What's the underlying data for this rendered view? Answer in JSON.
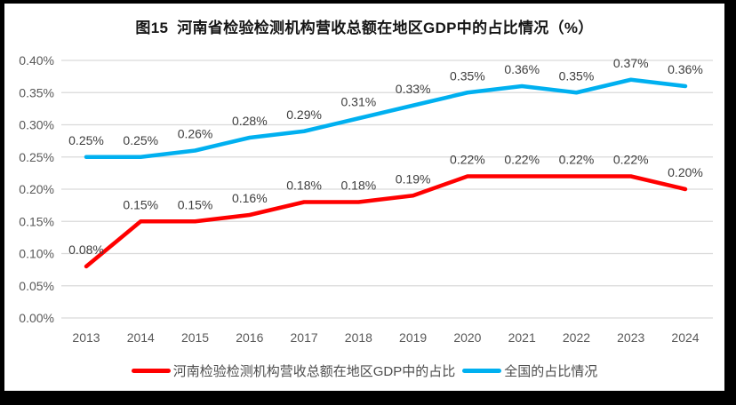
{
  "chart_data": {
    "type": "line",
    "title": "图15  河南省检验检测机构营收总额在地区GDP中的占比情况（%）",
    "categories": [
      "2013",
      "2014",
      "2015",
      "2016",
      "2017",
      "2018",
      "2019",
      "2020",
      "2021",
      "2022",
      "2023",
      "2024"
    ],
    "series": [
      {
        "name": "河南检验检测机构营收总额在地区GDP中的占比",
        "color": "#FF0000",
        "values": [
          0.08,
          0.15,
          0.15,
          0.16,
          0.18,
          0.18,
          0.19,
          0.22,
          0.22,
          0.22,
          0.22,
          0.2
        ],
        "labels": [
          "0.08%",
          "0.15%",
          "0.15%",
          "0.16%",
          "0.18%",
          "0.18%",
          "0.19%",
          "0.22%",
          "0.22%",
          "0.22%",
          "0.22%",
          "0.20%"
        ]
      },
      {
        "name": "全国的占比情况",
        "color": "#00B0F0",
        "values": [
          0.25,
          0.25,
          0.26,
          0.28,
          0.29,
          0.31,
          0.33,
          0.35,
          0.36,
          0.35,
          0.37,
          0.36
        ],
        "labels": [
          "0.25%",
          "0.25%",
          "0.26%",
          "0.28%",
          "0.29%",
          "0.31%",
          "0.33%",
          "0.35%",
          "0.36%",
          "0.35%",
          "0.37%",
          "0.36%"
        ]
      }
    ],
    "ylim": [
      0,
      0.4
    ],
    "ytick_values": [
      0,
      0.05,
      0.1,
      0.15,
      0.2,
      0.25,
      0.3,
      0.35,
      0.4
    ],
    "ytick_labels": [
      "0.00%",
      "0.05%",
      "0.10%",
      "0.15%",
      "0.20%",
      "0.25%",
      "0.30%",
      "0.35%",
      "0.40%"
    ],
    "grid": "horizontal",
    "legend_position": "bottom",
    "xlabel": "",
    "ylabel": ""
  },
  "style": {
    "frame_color": "#000000",
    "panel_color": "#ffffff",
    "grid_color": "#D9D9D9",
    "tick_color": "#595959",
    "data_label_color": "#3d3d3d"
  }
}
